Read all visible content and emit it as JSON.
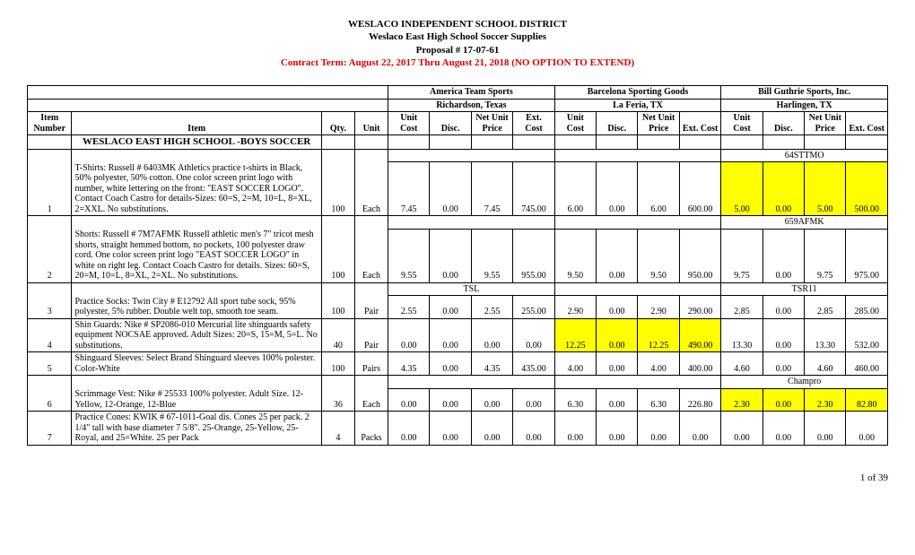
{
  "header": {
    "line1": "WESLACO INDEPENDENT SCHOOL DISTRICT",
    "line2": "Weslaco East High School Soccer Supplies",
    "line3": "Proposal # 17-07-61",
    "line4": "Contract Term: August 22, 2017 Thru August 21, 2018 (NO OPTION TO EXTEND)"
  },
  "vendors": [
    {
      "name": "America Team Sports",
      "city": "Richardson, Texas"
    },
    {
      "name": "Barcelona Sporting Goods",
      "city": "La Feria, TX"
    },
    {
      "name": "Bill Guthrie Sports, Inc.",
      "city": "Harlingen, TX"
    }
  ],
  "col_headers": {
    "item_number": "Item Number",
    "item": "Item",
    "qty": "Qty.",
    "unit": "Unit",
    "unit_cost": "Unit Cost",
    "disc": "Disc.",
    "net_unit_price": "Net Unit Price",
    "ext_cost": "Ext. Cost"
  },
  "section_title": "WESLACO EAST HIGH SCHOOL -BOYS SOCCER",
  "rows": [
    {
      "num": "1",
      "desc": "T-Shirts: Russell # 6403MK Athletics practice t-shirts in Black, 50% polyester, 50% cotton.  One color screen print logo with number, white lettering on the front: \"EAST SOCCER LOGO\".  Contact Coach Castro for details-Sizes: 60=S, 2=M, 10=L, 8=XL, 2=XXL. No substitutions.",
      "qty": "100",
      "unit": "Each",
      "note_a": "",
      "note_b": "",
      "note_c": "64STTMO",
      "a": [
        "7.45",
        "0.00",
        "7.45",
        "745.00"
      ],
      "b": [
        "6.00",
        "0.00",
        "6.00",
        "600.00"
      ],
      "c": [
        "5.00",
        "0.00",
        "5.00",
        "500.00"
      ],
      "hl_a": false,
      "hl_b": false,
      "hl_c": true
    },
    {
      "num": "2",
      "desc": "Shorts: Russell # 7M7AFMK Russell athletic men's 7\" tricot mesh shorts, straight hemmed bottom, no pockets, 100 polyester draw cord. One color screen print logo \"EAST SOCCER LOGO\" in white on right leg. Contact Coach Castro for details. Sizes: 60=S, 20=M, 10=L, 8=XL, 2=XL. No substitutions.",
      "qty": "100",
      "unit": "Each",
      "note_a": "",
      "note_b": "",
      "note_c": "659AFMK",
      "a": [
        "9.55",
        "0.00",
        "9.55",
        "955.00"
      ],
      "b": [
        "9.50",
        "0.00",
        "9.50",
        "950.00"
      ],
      "c": [
        "9.75",
        "0.00",
        "9.75",
        "975.00"
      ],
      "hl_a": false,
      "hl_b": false,
      "hl_c": false
    },
    {
      "num": "3",
      "desc": "Practice Socks: Twin City # E12792  All sport tube sock, 95% polyester, 5% rubber.  Double welt top, smooth toe seam.",
      "qty": "100",
      "unit": "Pair",
      "note_a": "TSL",
      "note_b": "",
      "note_c": "TSR11",
      "a": [
        "2.55",
        "0.00",
        "2.55",
        "255.00"
      ],
      "b": [
        "2.90",
        "0.00",
        "2.90",
        "290.00"
      ],
      "c": [
        "2.85",
        "0.00",
        "2.85",
        "285.00"
      ],
      "hl_a": false,
      "hl_b": false,
      "hl_c": false
    },
    {
      "num": "4",
      "desc": "Shin Guards: Nike # SP2086-010 Mercurial lite shinguards safety equipment NOCSAE approved. Adult Sizes: 20=S, 15=M, 5=L. No substitutions.",
      "qty": "40",
      "unit": "Pair",
      "note_a": "",
      "note_b": "",
      "note_c": "",
      "a": [
        "0.00",
        "0.00",
        "0.00",
        "0.00"
      ],
      "b": [
        "12.25",
        "0.00",
        "12.25",
        "490.00"
      ],
      "c": [
        "13.30",
        "0.00",
        "13.30",
        "532.00"
      ],
      "hl_a": false,
      "hl_b": true,
      "hl_c": false
    },
    {
      "num": "5",
      "desc": "Shinguard Sleeves: Select Brand Shinguard sleeves 100% polester. Color-White",
      "qty": "100",
      "unit": "Pairs",
      "note_a": "",
      "note_b": "",
      "note_c": "",
      "a": [
        "4.35",
        "0.00",
        "4.35",
        "435.00"
      ],
      "b": [
        "4.00",
        "0.00",
        "4.00",
        "400.00"
      ],
      "c": [
        "4.60",
        "0.00",
        "4.60",
        "460.00"
      ],
      "hl_a": false,
      "hl_b": false,
      "hl_c": false
    },
    {
      "num": "6",
      "desc": "Scrimmage Vest: Nike # 25533 100% polyester. Adult Size. 12-Yellow, 12-Orange, 12-Blue",
      "qty": "36",
      "unit": "Each",
      "note_a": "",
      "note_b": "",
      "note_c": "Champro",
      "a": [
        "0.00",
        "0.00",
        "0.00",
        "0.00"
      ],
      "b": [
        "6.30",
        "0.00",
        "6.30",
        "226.80"
      ],
      "c": [
        "2.30",
        "0.00",
        "2.30",
        "82.80"
      ],
      "hl_a": false,
      "hl_b": false,
      "hl_c": true
    },
    {
      "num": "7",
      "desc": "Practice Cones: KWIK # 67-1011-Goal dis. Cones 25 per pack.  2 1/4\" tall with base diameter 7 5/8\".  25-Orange, 25-Yellow, 25-Royal, and 25=White.  25 per Pack",
      "qty": "4",
      "unit": "Packs",
      "note_a": "",
      "note_b": "",
      "note_c": "",
      "a": [
        "0.00",
        "0.00",
        "0.00",
        "0.00"
      ],
      "b": [
        "0.00",
        "0.00",
        "0.00",
        "0.00"
      ],
      "c": [
        "0.00",
        "0.00",
        "0.00",
        "0.00"
      ],
      "hl_a": false,
      "hl_b": false,
      "hl_c": false
    }
  ],
  "page_footer": "1 of 39"
}
